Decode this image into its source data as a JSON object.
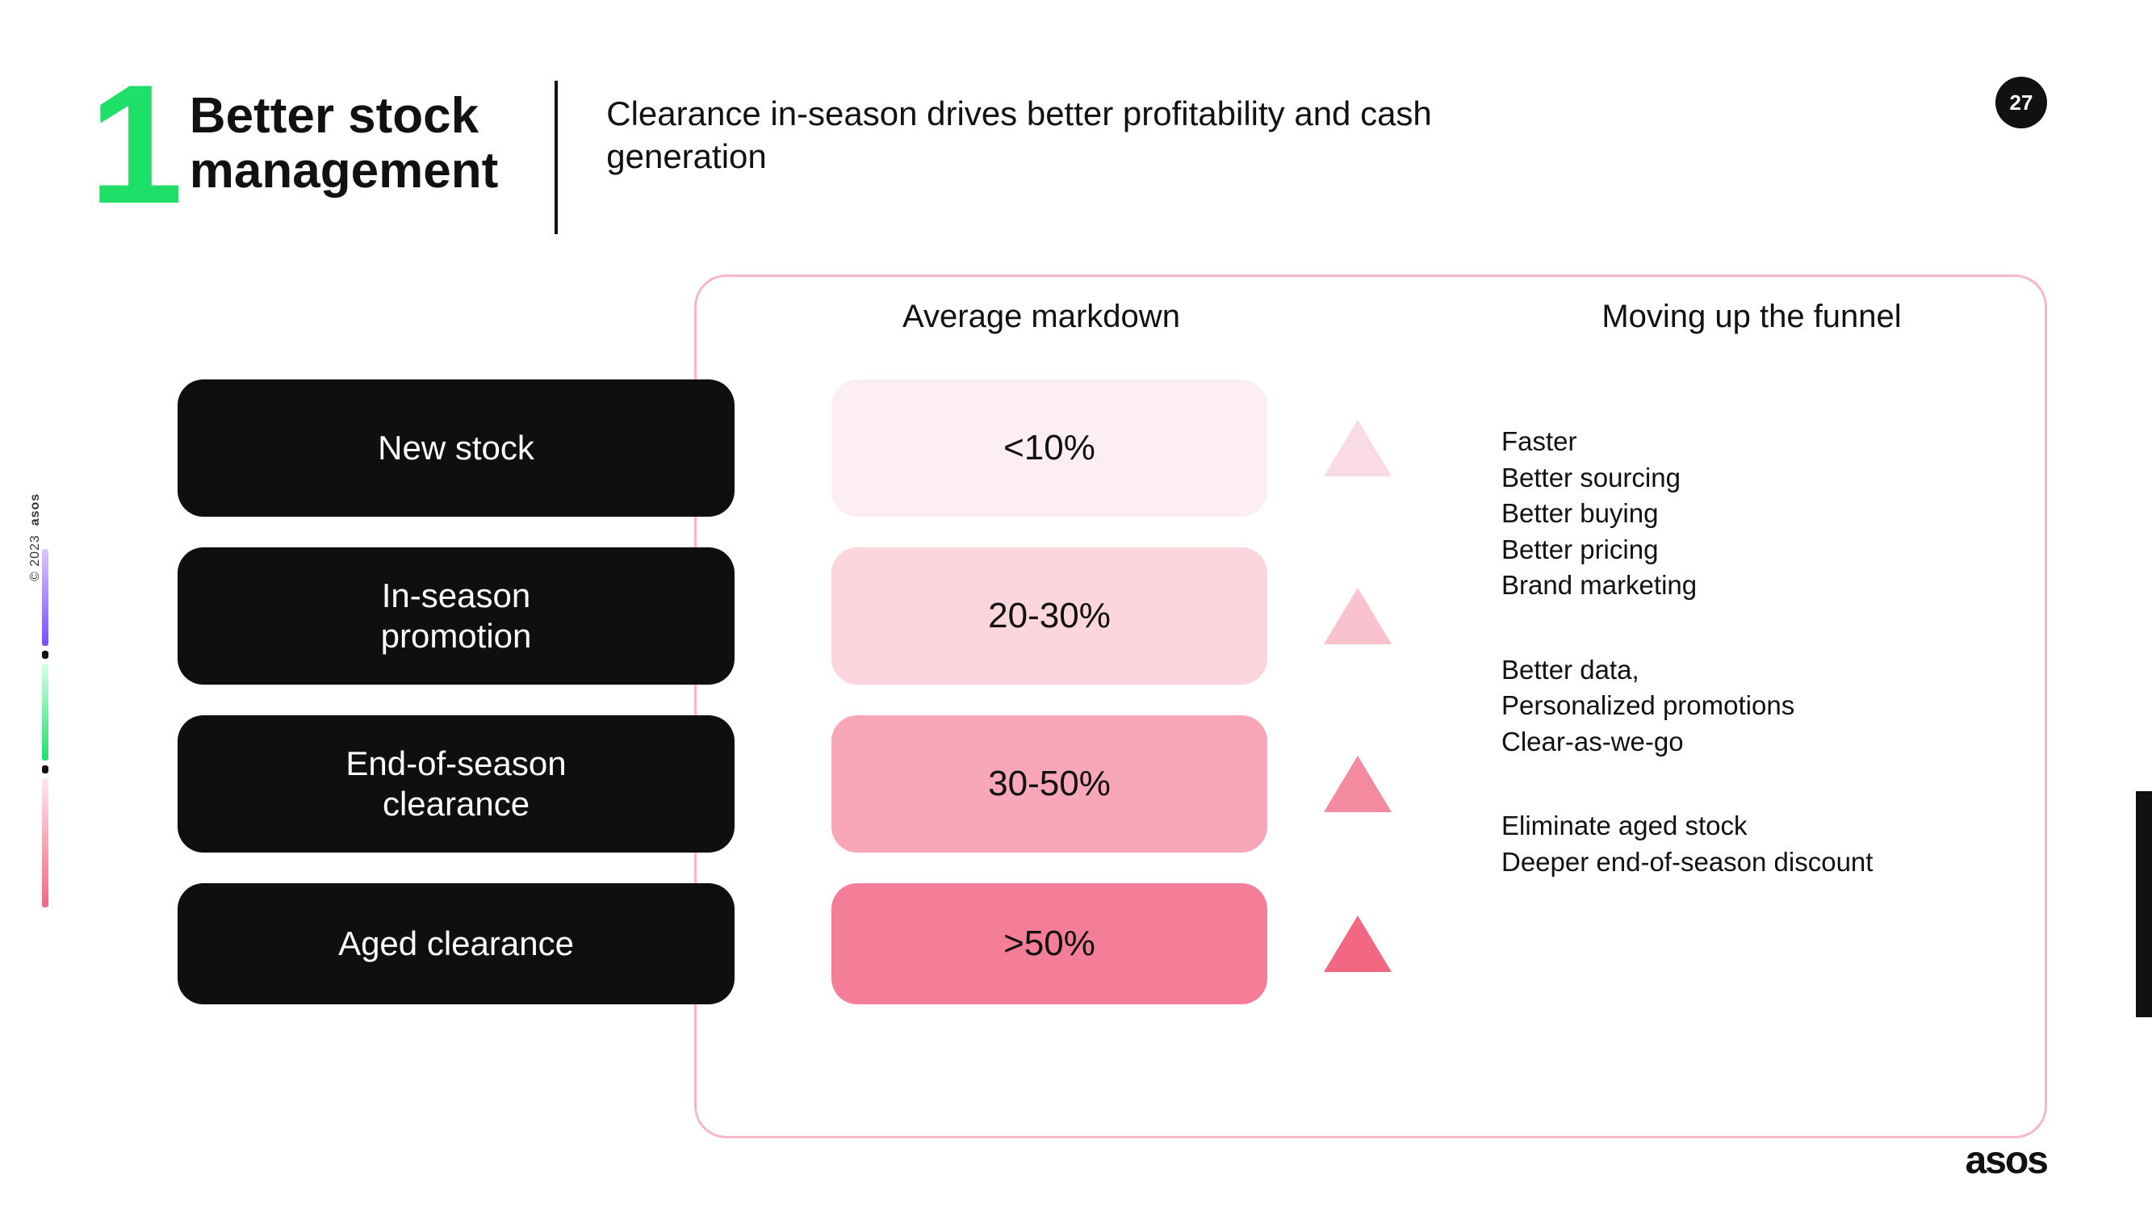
{
  "page_number": "27",
  "section_number": "1",
  "title_line1": "Better stock",
  "title_line2": "management",
  "subtitle": "Clearance in-season drives better profitability and cash generation",
  "col_header_markdown": "Average markdown",
  "col_header_funnel": "Moving up the funnel",
  "stages": [
    {
      "label": "New stock",
      "markdown": "<10%",
      "pill_bg": "#fdeef2",
      "tri_color": "#fbdbe3",
      "short": false
    },
    {
      "label": "In-season\npromotion",
      "markdown": "20-30%",
      "pill_bg": "#fbd6de",
      "tri_color": "#f9c2ce",
      "short": false
    },
    {
      "label": "End-of-season\nclearance",
      "markdown": "30-50%",
      "pill_bg": "#f7a7b7",
      "tri_color": "#f48aa0",
      "short": false
    },
    {
      "label": "Aged clearance",
      "markdown": ">50%",
      "pill_bg": "#f47e97",
      "tri_color": "#f26782",
      "short": true
    }
  ],
  "funnel_groups": [
    [
      "Faster",
      "Better sourcing",
      "Better buying",
      "Better pricing",
      "Brand marketing"
    ],
    [
      "Better data,",
      "Personalized promotions",
      "Clear-as-we-go"
    ],
    [
      "Eliminate aged stock",
      "Deeper end-of-season discount"
    ]
  ],
  "brand": "asos",
  "side_copyright": "© 2023",
  "side_brand": "asos",
  "rail_segments": [
    {
      "h": 120,
      "bg": "linear-gradient(#d9c8ff,#7a4dff)"
    },
    {
      "h": 10,
      "bg": "#111"
    },
    {
      "h": 120,
      "bg": "linear-gradient(#d6ffe8,#1ee069)"
    },
    {
      "h": 10,
      "bg": "#111"
    },
    {
      "h": 160,
      "bg": "linear-gradient(#ffe6ec,#f26782)"
    }
  ]
}
